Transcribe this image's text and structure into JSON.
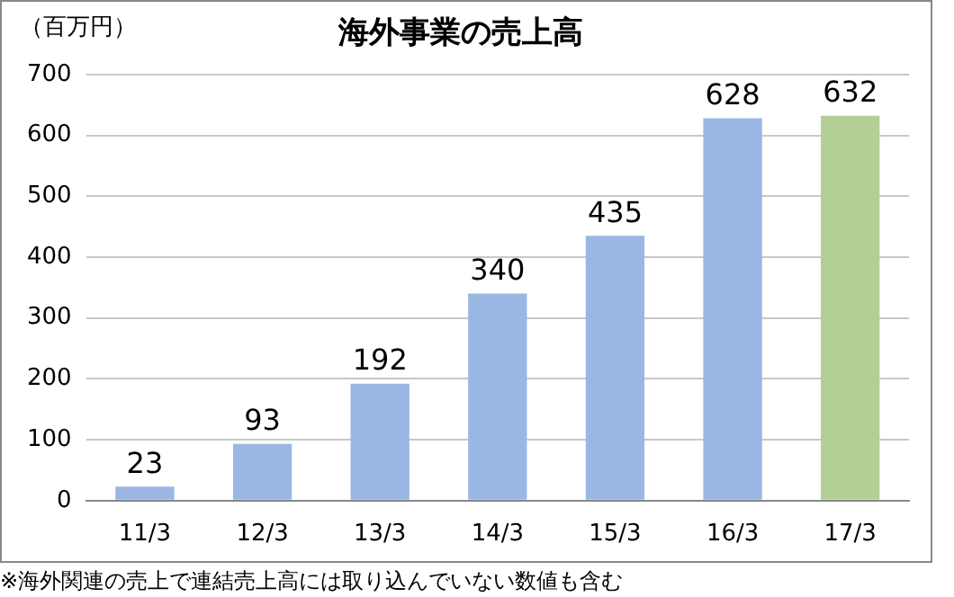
{
  "chart_data": {
    "type": "bar",
    "title": "海外事業の売上高",
    "ylabel": "（百万円）",
    "categories": [
      "11/3",
      "12/3",
      "13/3",
      "14/3",
      "15/3",
      "16/3",
      "17/3"
    ],
    "values": [
      23,
      93,
      192,
      340,
      435,
      628,
      632
    ],
    "colors": [
      "#9ab7e3",
      "#9ab7e3",
      "#9ab7e3",
      "#9ab7e3",
      "#9ab7e3",
      "#9ab7e3",
      "#b4cf94"
    ],
    "ylim": [
      0,
      700
    ],
    "yticks": [
      0,
      100,
      200,
      300,
      400,
      500,
      600,
      700
    ],
    "grid": "y",
    "legend": false,
    "data_labels": true,
    "annotations": [
      "※海外関連の売上で連結売上高には取り込んでいない数値も含む"
    ]
  }
}
